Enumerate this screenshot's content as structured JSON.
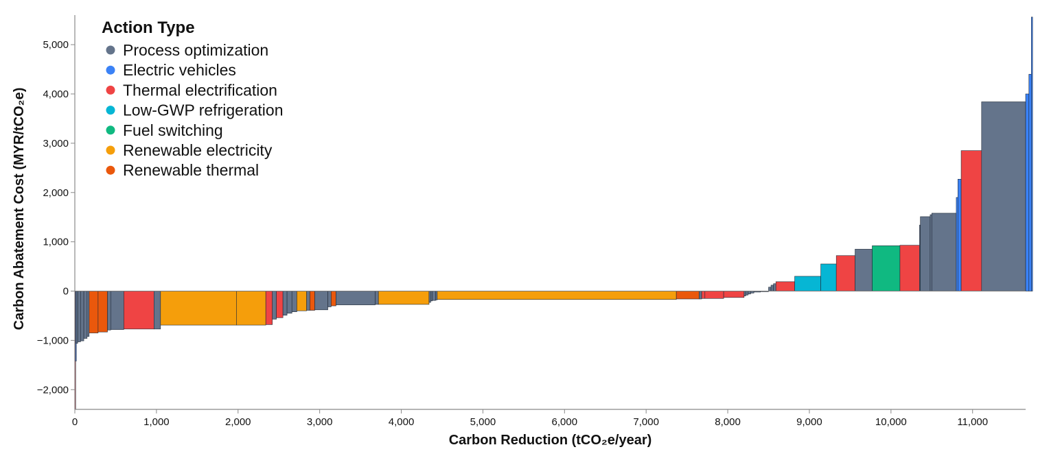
{
  "chart_data": {
    "type": "bar",
    "subtype": "marginal-abatement-cost-curve",
    "xlabel": "Carbon Reduction (tCO₂e/year)",
    "ylabel": "Carbon Abatement Cost (MYR/tCO₂e)",
    "xlim": [
      0,
      11650
    ],
    "ylim": [
      -2400,
      5600
    ],
    "x_ticks": [
      0,
      1000,
      2000,
      3000,
      4000,
      5000,
      6000,
      7000,
      8000,
      9000,
      10000,
      11000
    ],
    "x_tick_labels": [
      "0",
      "1,000",
      "2,000",
      "3,000",
      "4,000",
      "5,000",
      "6,000",
      "7,000",
      "8,000",
      "9,000",
      "10,000",
      "11,000"
    ],
    "y_ticks": [
      -2000,
      -1000,
      0,
      1000,
      2000,
      3000,
      4000,
      5000
    ],
    "y_tick_labels": [
      "−2,000",
      "−1,000",
      "0",
      "1,000",
      "2,000",
      "3,000",
      "4,000",
      "5,000"
    ],
    "legend": {
      "title": "Action Type",
      "position": "top-left",
      "entries": [
        {
          "key": "process",
          "label": "Process optimization",
          "color": "#64748b"
        },
        {
          "key": "ev",
          "label": "Electric vehicles",
          "color": "#3b82f6"
        },
        {
          "key": "thermal_elec",
          "label": "Thermal electrification",
          "color": "#ef4444"
        },
        {
          "key": "refrig",
          "label": "Low-GWP refrigeration",
          "color": "#06b6d4"
        },
        {
          "key": "fuel",
          "label": "Fuel switching",
          "color": "#10b981"
        },
        {
          "key": "renew_elec",
          "label": "Renewable electricity",
          "color": "#f59e0b"
        },
        {
          "key": "renew_therm",
          "label": "Renewable thermal",
          "color": "#ea580c"
        }
      ]
    },
    "grid": false,
    "bars": [
      {
        "type": "thermal_elec",
        "x0": 0,
        "x1": 8,
        "cost": -2400
      },
      {
        "type": "ev",
        "x0": 8,
        "x1": 15,
        "cost": -1420
      },
      {
        "type": "process",
        "x0": 15,
        "x1": 35,
        "cost": -1060
      },
      {
        "type": "process",
        "x0": 35,
        "x1": 70,
        "cost": -1030
      },
      {
        "type": "process",
        "x0": 70,
        "x1": 110,
        "cost": -1010
      },
      {
        "type": "process",
        "x0": 110,
        "x1": 150,
        "cost": -960
      },
      {
        "type": "process",
        "x0": 150,
        "x1": 175,
        "cost": -920
      },
      {
        "type": "renew_therm",
        "x0": 175,
        "x1": 285,
        "cost": -850
      },
      {
        "type": "renew_therm",
        "x0": 285,
        "x1": 400,
        "cost": -830
      },
      {
        "type": "process",
        "x0": 400,
        "x1": 440,
        "cost": -790
      },
      {
        "type": "process",
        "x0": 440,
        "x1": 600,
        "cost": -780
      },
      {
        "type": "thermal_elec",
        "x0": 600,
        "x1": 970,
        "cost": -770
      },
      {
        "type": "process",
        "x0": 970,
        "x1": 1050,
        "cost": -770
      },
      {
        "type": "renew_elec",
        "x0": 1050,
        "x1": 1980,
        "cost": -690
      },
      {
        "type": "renew_elec",
        "x0": 1980,
        "x1": 2340,
        "cost": -690
      },
      {
        "type": "thermal_elec",
        "x0": 2340,
        "x1": 2420,
        "cost": -680
      },
      {
        "type": "process",
        "x0": 2420,
        "x1": 2470,
        "cost": -570
      },
      {
        "type": "thermal_elec",
        "x0": 2470,
        "x1": 2550,
        "cost": -540
      },
      {
        "type": "process",
        "x0": 2550,
        "x1": 2600,
        "cost": -490
      },
      {
        "type": "process",
        "x0": 2600,
        "x1": 2660,
        "cost": -450
      },
      {
        "type": "process",
        "x0": 2660,
        "x1": 2720,
        "cost": -420
      },
      {
        "type": "renew_elec",
        "x0": 2720,
        "x1": 2840,
        "cost": -400
      },
      {
        "type": "process",
        "x0": 2840,
        "x1": 2880,
        "cost": -390
      },
      {
        "type": "renew_therm",
        "x0": 2880,
        "x1": 2940,
        "cost": -390
      },
      {
        "type": "process",
        "x0": 2940,
        "x1": 3100,
        "cost": -380
      },
      {
        "type": "process",
        "x0": 3100,
        "x1": 3140,
        "cost": -320
      },
      {
        "type": "renew_therm",
        "x0": 3140,
        "x1": 3200,
        "cost": -300
      },
      {
        "type": "process",
        "x0": 3200,
        "x1": 3680,
        "cost": -280
      },
      {
        "type": "process",
        "x0": 3680,
        "x1": 3720,
        "cost": -270
      },
      {
        "type": "renew_elec",
        "x0": 3720,
        "x1": 4340,
        "cost": -270
      },
      {
        "type": "process",
        "x0": 4340,
        "x1": 4360,
        "cost": -230
      },
      {
        "type": "process",
        "x0": 4360,
        "x1": 4380,
        "cost": -200
      },
      {
        "type": "process",
        "x0": 4380,
        "x1": 4420,
        "cost": -190
      },
      {
        "type": "process",
        "x0": 4420,
        "x1": 4440,
        "cost": -180
      },
      {
        "type": "renew_elec",
        "x0": 4440,
        "x1": 7370,
        "cost": -170
      },
      {
        "type": "renew_therm",
        "x0": 7370,
        "x1": 7650,
        "cost": -160
      },
      {
        "type": "process",
        "x0": 7650,
        "x1": 7680,
        "cost": -160
      },
      {
        "type": "thermal_elec",
        "x0": 7680,
        "x1": 7720,
        "cost": -150
      },
      {
        "type": "thermal_elec",
        "x0": 7720,
        "x1": 7950,
        "cost": -150
      },
      {
        "type": "thermal_elec",
        "x0": 7950,
        "x1": 8200,
        "cost": -130
      },
      {
        "type": "process",
        "x0": 8200,
        "x1": 8220,
        "cost": -100
      },
      {
        "type": "process",
        "x0": 8220,
        "x1": 8250,
        "cost": -80
      },
      {
        "type": "process",
        "x0": 8250,
        "x1": 8280,
        "cost": -60
      },
      {
        "type": "process",
        "x0": 8280,
        "x1": 8320,
        "cost": -40
      },
      {
        "type": "process",
        "x0": 8320,
        "x1": 8400,
        "cost": -20
      },
      {
        "type": "process",
        "x0": 8400,
        "x1": 8500,
        "cost": -10
      },
      {
        "type": "process",
        "x0": 8500,
        "x1": 8530,
        "cost": 80
      },
      {
        "type": "process",
        "x0": 8530,
        "x1": 8560,
        "cost": 120
      },
      {
        "type": "process",
        "x0": 8560,
        "x1": 8590,
        "cost": 150
      },
      {
        "type": "thermal_elec",
        "x0": 8590,
        "x1": 8820,
        "cost": 190
      },
      {
        "type": "refrig",
        "x0": 8820,
        "x1": 9140,
        "cost": 300
      },
      {
        "type": "refrig",
        "x0": 9140,
        "x1": 9330,
        "cost": 550
      },
      {
        "type": "thermal_elec",
        "x0": 9330,
        "x1": 9560,
        "cost": 720
      },
      {
        "type": "process",
        "x0": 9560,
        "x1": 9770,
        "cost": 850
      },
      {
        "type": "fuel",
        "x0": 9770,
        "x1": 10110,
        "cost": 920
      },
      {
        "type": "thermal_elec",
        "x0": 10110,
        "x1": 10350,
        "cost": 930
      },
      {
        "type": "process",
        "x0": 10350,
        "x1": 10360,
        "cost": 1340
      },
      {
        "type": "process",
        "x0": 10360,
        "x1": 10480,
        "cost": 1510
      },
      {
        "type": "process",
        "x0": 10480,
        "x1": 10500,
        "cost": 1550
      },
      {
        "type": "process",
        "x0": 10500,
        "x1": 10800,
        "cost": 1580
      },
      {
        "type": "ev",
        "x0": 10800,
        "x1": 10820,
        "cost": 1900
      },
      {
        "type": "ev",
        "x0": 10820,
        "x1": 10860,
        "cost": 2270
      },
      {
        "type": "thermal_elec",
        "x0": 10860,
        "x1": 11110,
        "cost": 2850
      },
      {
        "type": "process",
        "x0": 11110,
        "x1": 11650,
        "cost": 3840
      },
      {
        "type": "ev",
        "x0": 11650,
        "x1": 11690,
        "cost": 4000
      },
      {
        "type": "ev",
        "x0": 11690,
        "x1": 11720,
        "cost": 4400
      },
      {
        "type": "ev",
        "x0": 11720,
        "x1": 11735,
        "cost": 5560
      }
    ]
  }
}
